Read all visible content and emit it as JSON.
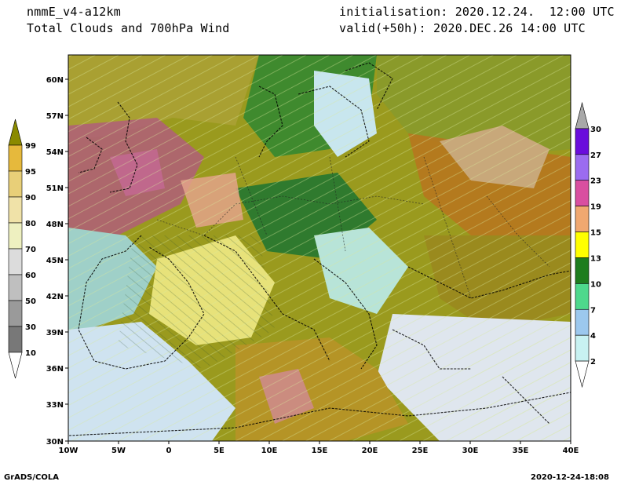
{
  "header": {
    "model": "nmmE_v4-a12km",
    "field": "Total Clouds and 700hPa Wind",
    "init": "initialisation: 2020.12.24.  12:00 UTC",
    "valid": "valid(+50h): 2020.DEC.26 14:00 UTC"
  },
  "map": {
    "lon_ticks": [
      "10W",
      "5W",
      "0",
      "5E",
      "10E",
      "15E",
      "20E",
      "25E",
      "30E",
      "35E",
      "40E"
    ],
    "lat_ticks": [
      "60N",
      "57N",
      "54N",
      "51N",
      "48N",
      "45N",
      "42N",
      "39N",
      "36N",
      "33N",
      "30N"
    ],
    "lon_range": [
      -10,
      40
    ],
    "lat_range": [
      30,
      62
    ]
  },
  "cloud_legend": {
    "labels": [
      "99",
      "95",
      "90",
      "80",
      "70",
      "60",
      "50",
      "30",
      "10"
    ],
    "colors": [
      "#8a8a00",
      "#e6b93c",
      "#e8cf78",
      "#f0e2a8",
      "#eef0c0",
      "#dcdcdc",
      "#bfbfbf",
      "#9a9a9a",
      "#787878",
      "#505050"
    ]
  },
  "wind_legend": {
    "labels": [
      "30",
      "27",
      "23",
      "19",
      "15",
      "13",
      "10",
      "7",
      "4",
      "2"
    ],
    "colors": [
      "#a8a8a8",
      "#6a0ddc",
      "#9b6cf0",
      "#d94fa0",
      "#f0a870",
      "#ffff00",
      "#1e7d1e",
      "#4ed88c",
      "#9cc8ee",
      "#c8f2f2",
      "#ffffff"
    ]
  },
  "footer": {
    "left": "GrADS/COLA",
    "right": "2020-12-24-18:08"
  }
}
